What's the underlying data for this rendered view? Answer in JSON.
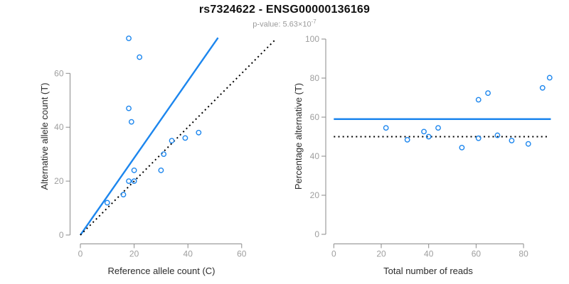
{
  "header": {
    "title": "rs7324622 - ENSG00000136169",
    "pvalue_base": "p-value: 5.63×10",
    "pvalue_exponent": "-7"
  },
  "colors": {
    "accent_blue": "#1C86EE",
    "dotted_black": "#000000",
    "axis_line": "#8a8a8a",
    "tick_text": "#9e9e9e",
    "axis_title_text": "#2b2b2b",
    "title_text": "#111111",
    "subtitle_text": "#9b9b9b",
    "background": "#ffffff"
  },
  "chart_data": [
    {
      "id": "allele-count-scatter",
      "type": "scatter",
      "title": "",
      "xlabel": "Reference allele count (C)",
      "ylabel": "Alternative allele count (T)",
      "xticks": [
        0,
        20,
        40,
        60
      ],
      "yticks": [
        0,
        20,
        40,
        60
      ],
      "xlim": [
        0,
        73
      ],
      "ylim": [
        0,
        74
      ],
      "marker": "open-circle",
      "points": [
        [
          10,
          12
        ],
        [
          16,
          15
        ],
        [
          18,
          20
        ],
        [
          20,
          20
        ],
        [
          20,
          24
        ],
        [
          30,
          24
        ],
        [
          31,
          30
        ],
        [
          34,
          35
        ],
        [
          39,
          36
        ],
        [
          44,
          38
        ],
        [
          19,
          42
        ],
        [
          18,
          47
        ],
        [
          22,
          66
        ],
        [
          18,
          73
        ]
      ],
      "lines": [
        {
          "name": "fit-line",
          "style": "solid",
          "color": "#1C86EE",
          "width": 2.4,
          "x1": 0,
          "y1": 0,
          "x2": 51.2,
          "y2": 73.2
        },
        {
          "name": "identity-line",
          "style": "dotted",
          "color": "#000000",
          "width": 2,
          "x1": 0,
          "y1": 0,
          "x2": 72.6,
          "y2": 72.6
        }
      ]
    },
    {
      "id": "percentage-vs-reads-scatter",
      "type": "scatter",
      "title": "",
      "xlabel": "Total number of reads",
      "ylabel": "Percentage alternative (T)",
      "xticks": [
        0,
        20,
        40,
        60,
        80
      ],
      "yticks": [
        0,
        20,
        40,
        60,
        80,
        100
      ],
      "xlim": [
        0,
        92
      ],
      "ylim": [
        0,
        100
      ],
      "marker": "open-circle",
      "points": [
        [
          22,
          54.5
        ],
        [
          31,
          48.4
        ],
        [
          38,
          52.6
        ],
        [
          40,
          50.0
        ],
        [
          44,
          54.5
        ],
        [
          54,
          44.4
        ],
        [
          61,
          49.2
        ],
        [
          61,
          68.9
        ],
        [
          65,
          72.3
        ],
        [
          69,
          50.7
        ],
        [
          75,
          48.0
        ],
        [
          82,
          46.3
        ],
        [
          88,
          75.0
        ],
        [
          91,
          80.2
        ]
      ],
      "lines": [
        {
          "name": "mean-percentage-line",
          "style": "solid",
          "color": "#1C86EE",
          "width": 2.6,
          "x1": 0,
          "y1": 59,
          "x2": 91.5,
          "y2": 59
        },
        {
          "name": "null-percentage-line",
          "style": "dotted",
          "color": "#000000",
          "width": 2,
          "x1": 0,
          "y1": 50,
          "x2": 90,
          "y2": 50
        }
      ]
    }
  ]
}
